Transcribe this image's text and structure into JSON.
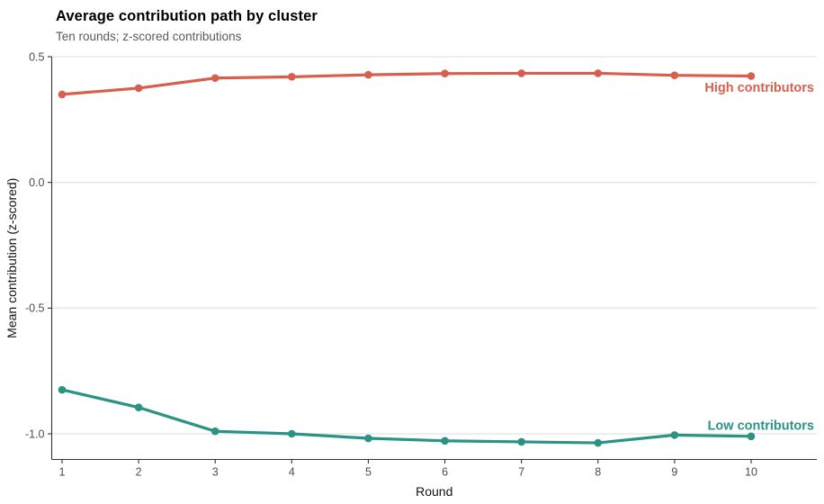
{
  "title": "Average contribution path by cluster",
  "subtitle": "Ten rounds; z-scored contributions",
  "colors": {
    "background": "#ffffff",
    "title_text": "#000000",
    "subtitle_text": "#5a5a5a",
    "tick_label": "#4d4d4d",
    "axis_line": "#333333",
    "gridline": "#e4e4e4",
    "axis_title": "#111111",
    "high_series": "#d6604d",
    "low_series": "#2a9384"
  },
  "chart_data": {
    "type": "line",
    "title": "Average contribution path by cluster",
    "subtitle": "Ten rounds; z-scored contributions",
    "xlabel": "Round",
    "ylabel": "Mean contribution (z-scored)",
    "x": [
      1,
      2,
      3,
      4,
      5,
      6,
      7,
      8,
      9,
      10
    ],
    "xtick_labels": [
      "1",
      "2",
      "3",
      "4",
      "5",
      "6",
      "7",
      "8",
      "9",
      "10"
    ],
    "xlim": [
      1,
      10
    ],
    "ylim": [
      -1.1,
      0.5
    ],
    "yticks": [
      0.5,
      0.0,
      -0.5,
      -1.0
    ],
    "ytick_labels": [
      "0.5",
      "0.0",
      "-0.5",
      "-1.0"
    ],
    "grid": "horizontal-only",
    "legend": "direct-labels-at-line-end",
    "marker": "filled-circle",
    "series": [
      {
        "name": "High contributors",
        "color": "#d6604d",
        "label_side": "below",
        "values": [
          0.35,
          0.375,
          0.415,
          0.42,
          0.428,
          0.433,
          0.434,
          0.434,
          0.426,
          0.423
        ]
      },
      {
        "name": "Low contributors",
        "color": "#2a9384",
        "label_side": "above",
        "values": [
          -0.825,
          -0.895,
          -0.99,
          -1.0,
          -1.018,
          -1.028,
          -1.032,
          -1.036,
          -1.005,
          -1.01
        ]
      }
    ]
  }
}
